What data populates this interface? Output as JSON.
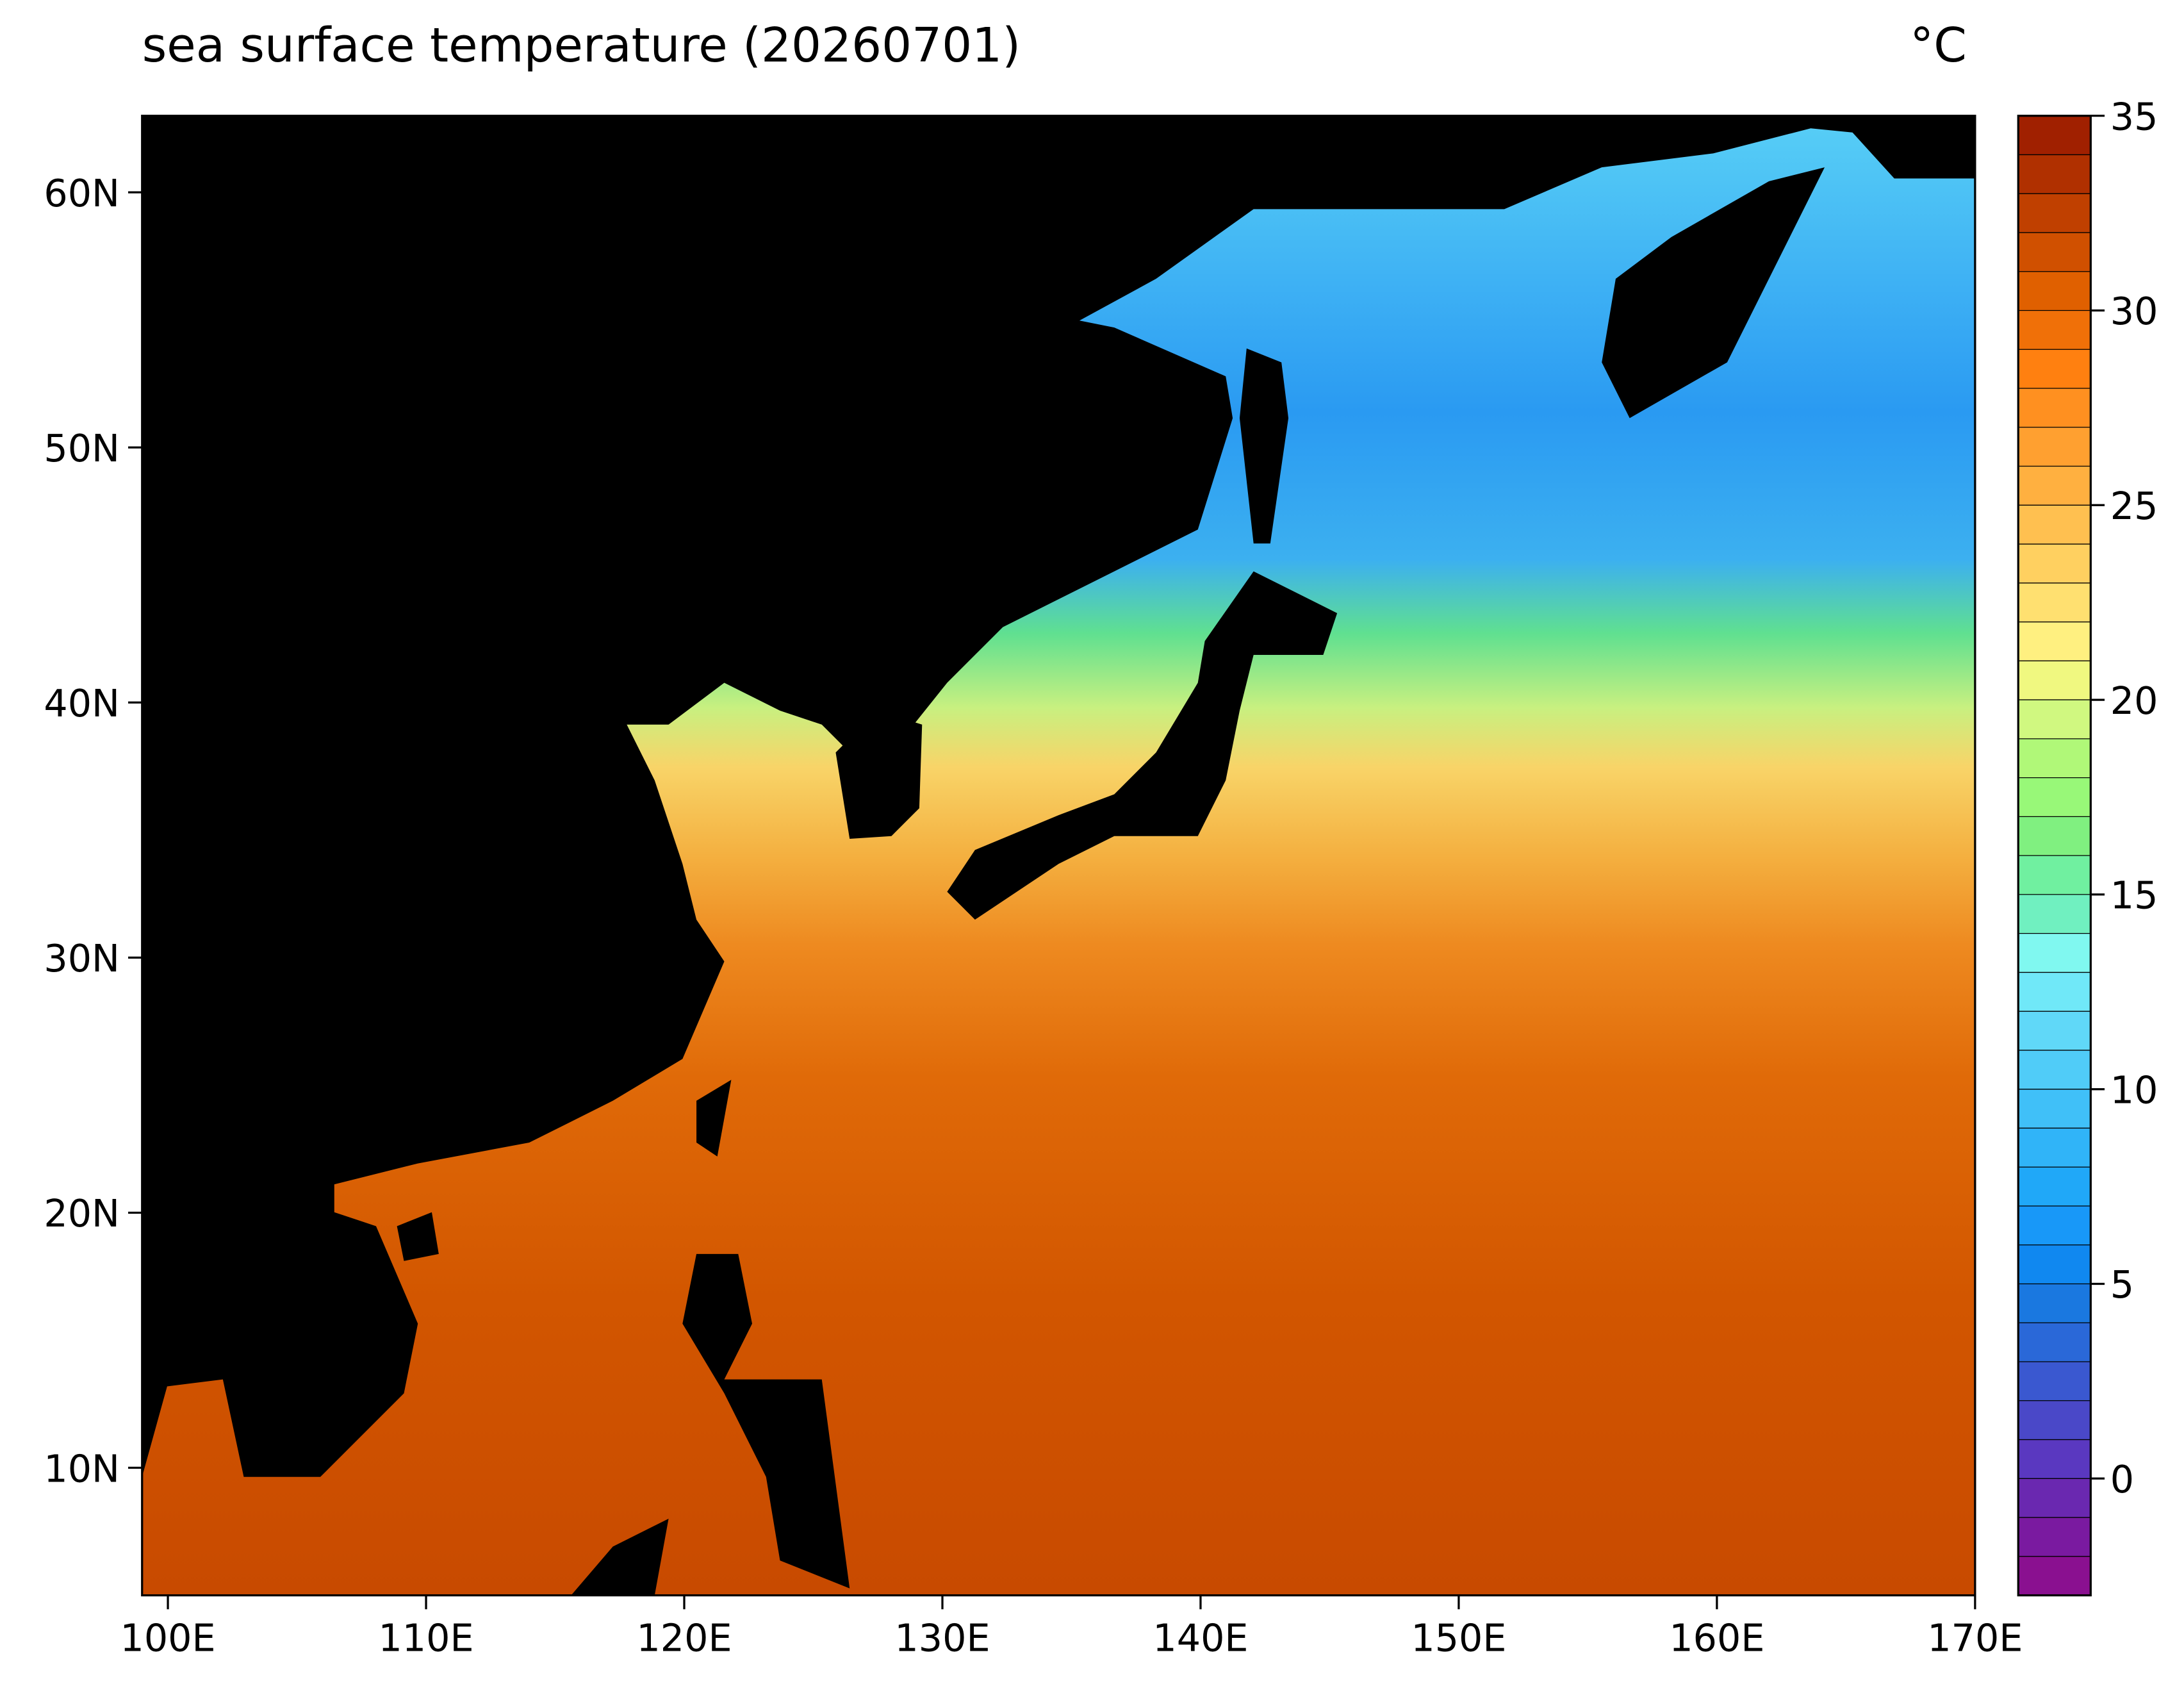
{
  "chart_data": {
    "type": "map",
    "title": "sea surface temperature (20260701)",
    "unit_label": "°C",
    "xlim": [
      99,
      170
    ],
    "ylim": [
      5,
      63
    ],
    "xticks": [
      {
        "value": 100,
        "label": "100E"
      },
      {
        "value": 110,
        "label": "110E"
      },
      {
        "value": 120,
        "label": "120E"
      },
      {
        "value": 130,
        "label": "130E"
      },
      {
        "value": 140,
        "label": "140E"
      },
      {
        "value": 150,
        "label": "150E"
      },
      {
        "value": 160,
        "label": "160E"
      },
      {
        "value": 170,
        "label": "170E"
      }
    ],
    "yticks": [
      {
        "value": 10,
        "label": "10N"
      },
      {
        "value": 20,
        "label": "20N"
      },
      {
        "value": 30,
        "label": "30N"
      },
      {
        "value": 40,
        "label": "40N"
      },
      {
        "value": 50,
        "label": "50N"
      },
      {
        "value": 60,
        "label": "60N"
      }
    ],
    "colorbar": {
      "clim": [
        -3,
        35
      ],
      "ticks": [
        0,
        5,
        10,
        15,
        20,
        25,
        30,
        35
      ],
      "colors": [
        "#8a1090",
        "#7a1aa0",
        "#6a28b0",
        "#5a38c0",
        "#4a48c8",
        "#3a58d0",
        "#2a68d8",
        "#1a78e0",
        "#1088f0",
        "#1898f8",
        "#20a8f8",
        "#30b4f8",
        "#40c0f8",
        "#50ccf8",
        "#60d8f8",
        "#70e8f8",
        "#80f8f0",
        "#70f0c0",
        "#70f0a0",
        "#80f080",
        "#98f878",
        "#b0f878",
        "#d0f880",
        "#f0f880",
        "#fff080",
        "#ffe070",
        "#ffd060",
        "#ffc050",
        "#ffb040",
        "#ffa030",
        "#ff9020",
        "#ff8010",
        "#f07008",
        "#e06000",
        "#d05000",
        "#c04000",
        "#b03000",
        "#a02000"
      ]
    }
  }
}
